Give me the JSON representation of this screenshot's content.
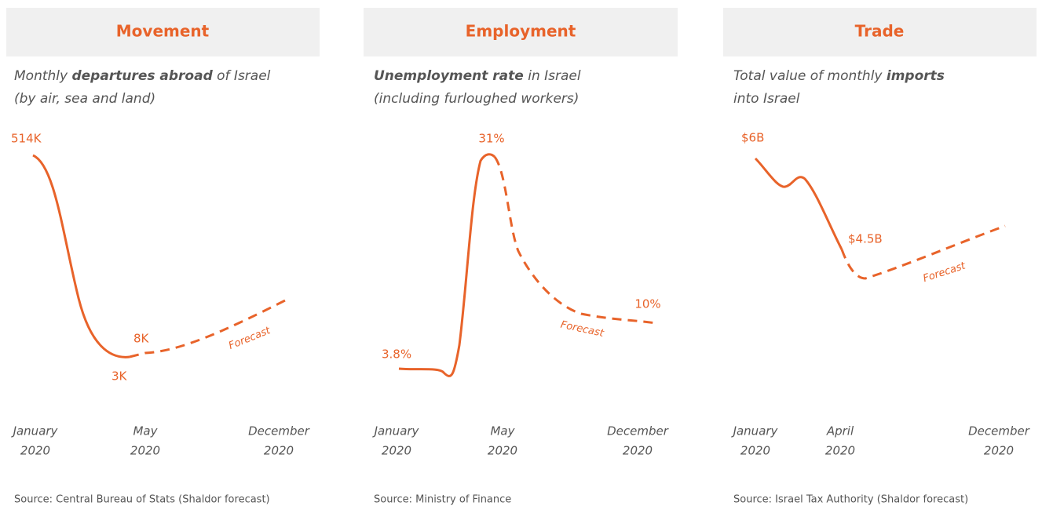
{
  "panels": [
    {
      "title": "Movement",
      "subtitle": [
        [
          "Monthly ",
          "departures abroad",
          " of Israel"
        ],
        [
          "(by air, sea and land)"
        ]
      ],
      "labels": [
        "514K",
        "8K",
        "3K",
        "Forecast"
      ],
      "x_labels": [
        [
          "January",
          "2020"
        ],
        [
          "May",
          "2020"
        ],
        [
          "December",
          "2020"
        ]
      ],
      "source": "Source: Central Bureau of Stats (Shaldor forecast)"
    },
    {
      "title": "Employment",
      "subtitle": [
        [
          "Unemployment rate",
          " in Israel"
        ],
        [
          "(including furloughed workers)"
        ]
      ],
      "labels": [
        "3.8%",
        "31%",
        "10%",
        "Forecast"
      ],
      "x_labels": [
        [
          "January",
          "2020"
        ],
        [
          "May",
          "2020"
        ],
        [
          "December",
          "2020"
        ]
      ],
      "source": "Source: Ministry of Finance"
    },
    {
      "title": "Trade",
      "subtitle": [
        [
          "Total value of monthly ",
          "imports"
        ],
        [
          "into Israel"
        ]
      ],
      "labels": [
        "$6B",
        "$4.5B",
        "Forecast"
      ],
      "x_labels": [
        [
          "January",
          "2020"
        ],
        [
          "April",
          "2020"
        ],
        [
          "December",
          "2020"
        ]
      ],
      "source": "Source: Israel Tax Authority (Shaldor forecast)"
    }
  ]
}
